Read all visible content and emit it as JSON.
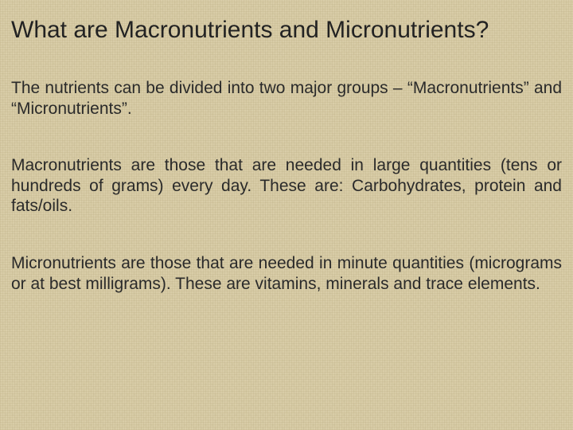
{
  "slide": {
    "background_color": "#d9cda8",
    "texture": "linen-canvas",
    "text_color": "#2a2a2a",
    "font_family": "Comic Sans MS",
    "title": {
      "text": "What are Macronutrients and Micronutrients?",
      "fontsize": 30
    },
    "paragraphs": [
      "The nutrients can be divided into two major groups – “Macronutrients” and “Micronutrients”.",
      "Macronutrients are those that are needed in large quantities (tens or hundreds of grams) every day. These are: Carbohydrates, protein and fats/oils.",
      "Micronutrients are those that are needed in minute quantities (micrograms or at best milligrams). These are vitamins, minerals and trace elements."
    ],
    "body_fontsize": 21,
    "alignment": "justify"
  }
}
